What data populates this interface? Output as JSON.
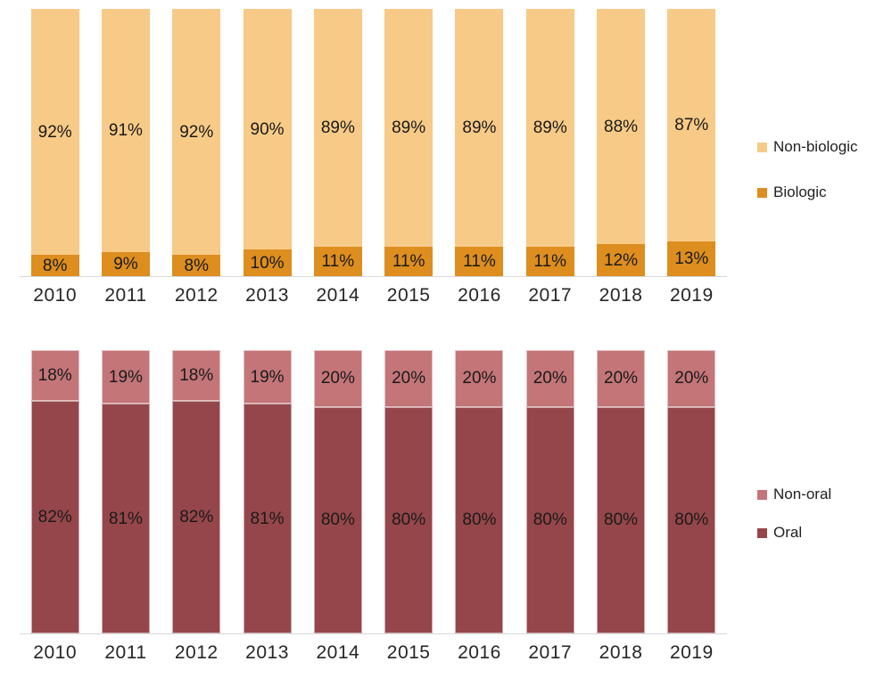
{
  "page": {
    "background": "#ffffff",
    "axis_line_color": "#d9d9d9"
  },
  "chart_data": [
    {
      "type": "bar",
      "subtype": "stacked-100-percent",
      "categories": [
        "2010",
        "2011",
        "2012",
        "2013",
        "2014",
        "2015",
        "2016",
        "2017",
        "2018",
        "2019"
      ],
      "series": [
        {
          "name": "Non-biologic",
          "color": "#F7CA87",
          "stack_position": "top",
          "values": [
            92,
            91,
            92,
            90,
            89,
            89,
            89,
            89,
            88,
            87
          ]
        },
        {
          "name": "Biologic",
          "color": "#DD8E1E",
          "stack_position": "bottom",
          "values": [
            8,
            9,
            8,
            10,
            11,
            11,
            11,
            11,
            12,
            13
          ]
        }
      ],
      "value_suffix": "%",
      "data_labels": true,
      "legend_position": "right",
      "legend": [
        "Non-biologic",
        "Biologic"
      ],
      "ylim": [
        0,
        100
      ],
      "grid": false,
      "segment_borders": false
    },
    {
      "type": "bar",
      "subtype": "stacked-100-percent",
      "categories": [
        "2010",
        "2011",
        "2012",
        "2013",
        "2014",
        "2015",
        "2016",
        "2017",
        "2018",
        "2019"
      ],
      "series": [
        {
          "name": "Non-oral",
          "color": "#C37578",
          "stack_position": "top",
          "values": [
            18,
            19,
            18,
            19,
            20,
            20,
            20,
            20,
            20,
            20
          ]
        },
        {
          "name": "Oral",
          "color": "#95464A",
          "stack_position": "bottom",
          "values": [
            82,
            81,
            82,
            81,
            80,
            80,
            80,
            80,
            80,
            80
          ]
        }
      ],
      "value_suffix": "%",
      "data_labels": true,
      "legend_position": "right",
      "legend": [
        "Non-oral",
        "Oral"
      ],
      "ylim": [
        0,
        100
      ],
      "grid": false,
      "segment_borders": true
    }
  ]
}
